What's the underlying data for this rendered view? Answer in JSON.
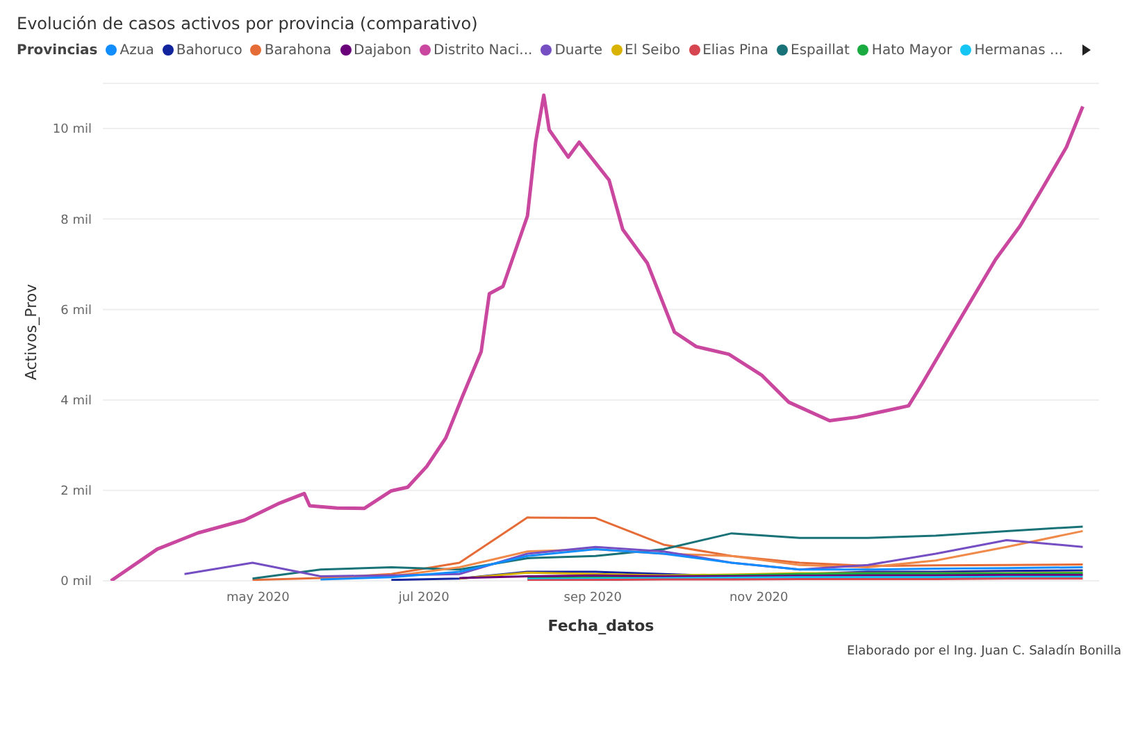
{
  "chart_data": {
    "type": "line",
    "title": "Evolución de casos activos por provincia (comparativo)",
    "legend_title": "Provincias",
    "xlabel": "Fecha_datos",
    "ylabel": "Activos_Prov",
    "annotations": [
      "Elaborado por el Ing. Juan C. Saladín Bonilla"
    ],
    "legend": "top left",
    "grid": "y",
    "line_style": "solid",
    "xlim": [
      "2020-03-05",
      "2021-03-06"
    ],
    "xticks": [
      {
        "value": "2020-05-01",
        "label": "may 2020"
      },
      {
        "value": "2020-07-01",
        "label": "jul 2020"
      },
      {
        "value": "2020-09-01",
        "label": "sep 2020"
      },
      {
        "value": "2020-11-01",
        "label": "nov 2020"
      }
    ],
    "ylim": [
      0,
      11
    ],
    "yticks": [
      {
        "value": 0,
        "label": "0 mil"
      },
      {
        "value": 2,
        "label": "2 mil"
      },
      {
        "value": 4,
        "label": "4 mil"
      },
      {
        "value": 6,
        "label": "6 mil"
      },
      {
        "value": 8,
        "label": "8 mil"
      },
      {
        "value": 10,
        "label": "10 mil"
      }
    ],
    "x": [
      "2020-04-04",
      "2020-04-29",
      "2020-05-24",
      "2020-06-19",
      "2020-07-14",
      "2020-08-08",
      "2020-09-02",
      "2020-09-27",
      "2020-10-22",
      "2020-11-16",
      "2020-12-11",
      "2021-01-05",
      "2021-01-31",
      "2021-02-28"
    ],
    "series": [
      {
        "name": "Azua",
        "color": "#118dff",
        "values": [
          null,
          null,
          0.03,
          0.08,
          0.2,
          0.55,
          0.7,
          0.6,
          0.4,
          0.25,
          0.25,
          0.27,
          0.28,
          0.3
        ]
      },
      {
        "name": "Bahoruco",
        "color": "#12239e",
        "values": [
          null,
          null,
          null,
          0.02,
          0.05,
          0.2,
          0.2,
          0.15,
          0.1,
          0.15,
          0.2,
          0.2,
          0.22,
          0.23
        ]
      },
      {
        "name": "Barahona",
        "color": "#e66c37",
        "values": [
          null,
          0.02,
          0.06,
          0.15,
          0.4,
          1.4,
          1.39,
          0.8,
          0.55,
          0.4,
          0.33,
          0.34,
          0.35,
          0.36
        ]
      },
      {
        "name": "Dajabon",
        "color": "#6b007b",
        "values": [
          null,
          null,
          null,
          null,
          0.06,
          0.1,
          0.12,
          0.1,
          0.1,
          0.11,
          0.12,
          0.12,
          0.13,
          0.13
        ]
      },
      {
        "name": "Distrito Naci...",
        "color": "#c9479e",
        "x": [
          "2020-03-08",
          "2020-03-25",
          "2020-04-09",
          "2020-04-26",
          "2020-05-09",
          "2020-05-18",
          "2020-05-20",
          "2020-05-30",
          "2020-06-09",
          "2020-06-19",
          "2020-06-25",
          "2020-07-02",
          "2020-07-09",
          "2020-07-15",
          "2020-07-22",
          "2020-07-25",
          "2020-07-30",
          "2020-08-08",
          "2020-08-11",
          "2020-08-14",
          "2020-08-16",
          "2020-08-23",
          "2020-08-27",
          "2020-09-07",
          "2020-09-12",
          "2020-09-21",
          "2020-10-01",
          "2020-10-09",
          "2020-10-21",
          "2020-11-02",
          "2020-11-12",
          "2020-11-27",
          "2020-12-07",
          "2020-12-26",
          "2020-12-31",
          "2021-01-08",
          "2021-01-17",
          "2021-01-27",
          "2021-02-05",
          "2021-02-13",
          "2021-02-22",
          "2021-02-28"
        ],
        "values": [
          0,
          0.7,
          1.06,
          1.34,
          1.72,
          1.93,
          1.66,
          1.61,
          1.6,
          1.99,
          2.07,
          2.53,
          3.16,
          4.06,
          5.07,
          6.35,
          6.51,
          8.07,
          9.7,
          10.74,
          9.97,
          9.37,
          9.7,
          8.86,
          7.77,
          7.03,
          5.5,
          5.18,
          5.01,
          4.55,
          3.95,
          3.54,
          3.62,
          3.87,
          4.36,
          5.18,
          6.1,
          7.11,
          7.85,
          8.66,
          9.59,
          10.49
        ]
      },
      {
        "name": "Duarte",
        "color": "#744ec2",
        "values": [
          0.15,
          0.4,
          0.1,
          0.12,
          0.15,
          0.6,
          0.75,
          0.65,
          0.4,
          0.25,
          0.35,
          0.6,
          0.9,
          0.75
        ]
      },
      {
        "name": "El Seibo",
        "color": "#d9b300",
        "values": [
          null,
          null,
          null,
          null,
          0.05,
          0.18,
          0.15,
          0.12,
          0.14,
          0.17,
          0.17,
          0.17,
          0.17,
          0.18
        ]
      },
      {
        "name": "Elias Pina",
        "color": "#d64550",
        "values": [
          null,
          null,
          null,
          null,
          null,
          0.01,
          0.02,
          0.03,
          0.03,
          0.04,
          0.04,
          0.04,
          0.05,
          0.05
        ]
      },
      {
        "name": "Espaillat",
        "color": "#197278",
        "values": [
          null,
          0.05,
          0.25,
          0.3,
          0.25,
          0.5,
          0.55,
          0.7,
          1.05,
          0.95,
          0.95,
          1,
          1.1,
          1.2
        ]
      },
      {
        "name": "Hato Mayor",
        "color": "#1aab40",
        "values": [
          null,
          null,
          null,
          null,
          null,
          0.06,
          0.08,
          0.1,
          0.12,
          0.15,
          0.16,
          0.16,
          0.16,
          0.17
        ]
      },
      {
        "name": "Hermanas ...",
        "color": "#15c6f4",
        "values": [
          null,
          null,
          null,
          null,
          null,
          0.04,
          0.05,
          0.06,
          0.07,
          0.08,
          0.08,
          0.08,
          0.09,
          0.09
        ]
      },
      {
        "color": "#f08a4b",
        "values": [
          null,
          null,
          0.04,
          0.1,
          0.3,
          0.65,
          0.7,
          0.6,
          0.55,
          0.35,
          0.3,
          0.45,
          0.75,
          1.1
        ]
      }
    ]
  }
}
